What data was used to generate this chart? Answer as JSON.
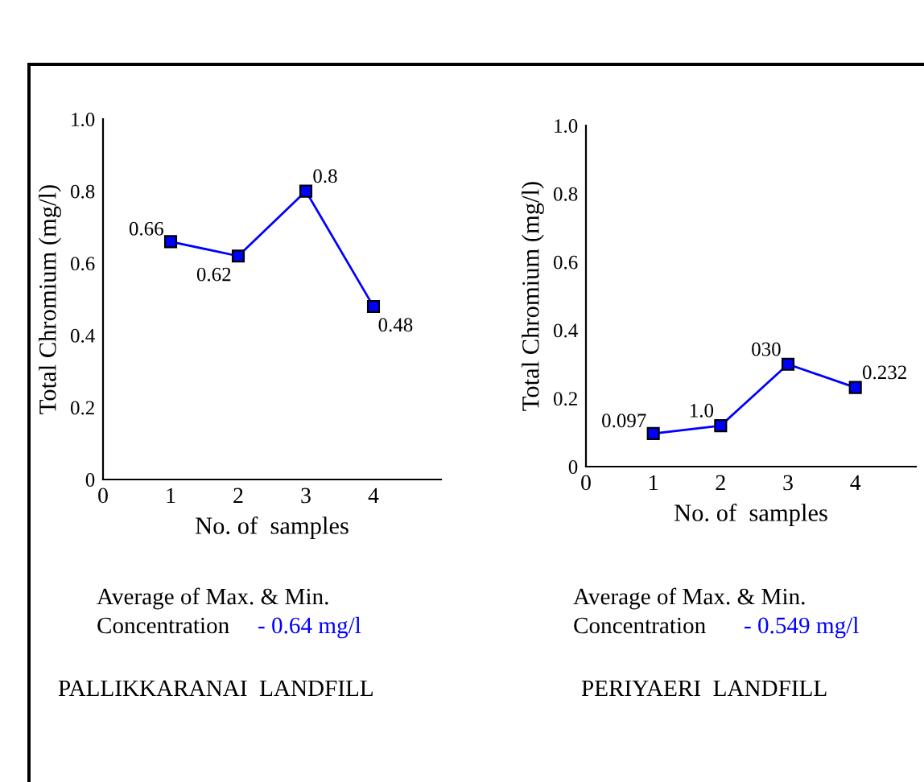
{
  "chart_data": [
    {
      "type": "line",
      "xlabel": "No. of  samples",
      "ylabel": "Total Chromium (mg/l)",
      "x": [
        1,
        2,
        3,
        4
      ],
      "series": [
        {
          "color": "#0000ff",
          "values": [
            0.66,
            0.62,
            0.8,
            0.48
          ]
        }
      ],
      "data_labels": true,
      "marker": "square",
      "line_style": "solid",
      "xlim": [
        0,
        5
      ],
      "xticks": [
        0,
        1,
        2,
        3,
        4
      ],
      "ylim": [
        0,
        1.0
      ],
      "yticks": [
        0,
        0.2,
        0.4,
        0.6,
        0.8,
        {
          "value": 1.0,
          "label": "1.0"
        }
      ],
      "annotations": [
        "Average of Max. & Min.",
        "Concentration",
        "- 0.64 mg/l",
        "PALLIKKARANAI  LANDFILL"
      ]
    },
    {
      "type": "line",
      "xlabel": "No. of  samples",
      "ylabel": "Total Chromium (mg/l)",
      "x": [
        1,
        2,
        3,
        4
      ],
      "series": [
        {
          "color": "#0000ff",
          "values": [
            0.097,
            0.12,
            0.3,
            0.232
          ],
          "value_labels": [
            "0.097",
            null,
            null,
            "0.232"
          ]
        }
      ],
      "marker": "square",
      "line_style": "solid",
      "xlim": [
        0,
        4.9
      ],
      "xticks": [
        0,
        1,
        2,
        3,
        4
      ],
      "ylim": [
        0,
        1.0
      ],
      "yticks": [
        0,
        0.2,
        0.4,
        0.6,
        0.8,
        {
          "value": 1.0,
          "label": "1.0"
        }
      ],
      "annotations": [
        "Average of Max. & Min.",
        "Concentration",
        "- 0.549 mg/l",
        "PERIYAERI  LANDFILL",
        {
          "text": "1.0",
          "x": 2,
          "y": 0.12
        },
        {
          "text": "030",
          "x": 3,
          "y": 0.3
        }
      ]
    }
  ]
}
